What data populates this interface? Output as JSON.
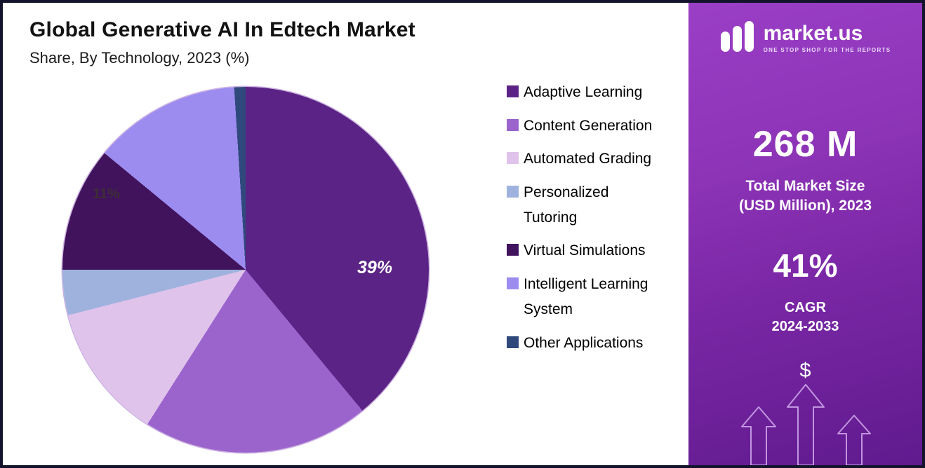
{
  "header": {
    "title": "Global Generative AI In Edtech Market",
    "subtitle": "Share, By Technology, 2023 (%)"
  },
  "chart_data": {
    "type": "pie",
    "title": "Global Generative AI In Edtech Market Share, By Technology, 2023 (%)",
    "unit": "%",
    "start_angle_deg": 0,
    "direction": "clockwise",
    "legend_position": "right",
    "series": [
      {
        "name": "Adaptive Learning",
        "value": 39,
        "color": "#5B2386"
      },
      {
        "name": "Content Generation",
        "value": 20,
        "color": "#9B64CC"
      },
      {
        "name": "Automated Grading",
        "value": 12,
        "color": "#DFC3EB"
      },
      {
        "name": "Personalized Tutoring",
        "value": 4,
        "color": "#9FB2DE"
      },
      {
        "name": "Virtual Simulations",
        "value": 11,
        "color": "#41135C"
      },
      {
        "name": "Intelligent Learning System",
        "value": 13,
        "color": "#9C8CF0"
      },
      {
        "name": "Other Applications",
        "value": 1,
        "color": "#30497C"
      }
    ],
    "labels_shown": [
      {
        "text": "39%",
        "slice": "Adaptive Learning"
      },
      {
        "text": "11%",
        "slice": "Virtual Simulations"
      }
    ]
  },
  "brand_panel": {
    "logo": {
      "brand": "market.us",
      "tagline": "ONE STOP SHOP FOR THE REPORTS"
    },
    "market_size_value": "268 M",
    "market_size_label_line1": "Total Market Size",
    "market_size_label_line2": "(USD Million), 2023",
    "cagr_value": "41%",
    "cagr_label_line1": "CAGR",
    "cagr_label_line2": "2024-2033",
    "currency_symbol": "$"
  }
}
